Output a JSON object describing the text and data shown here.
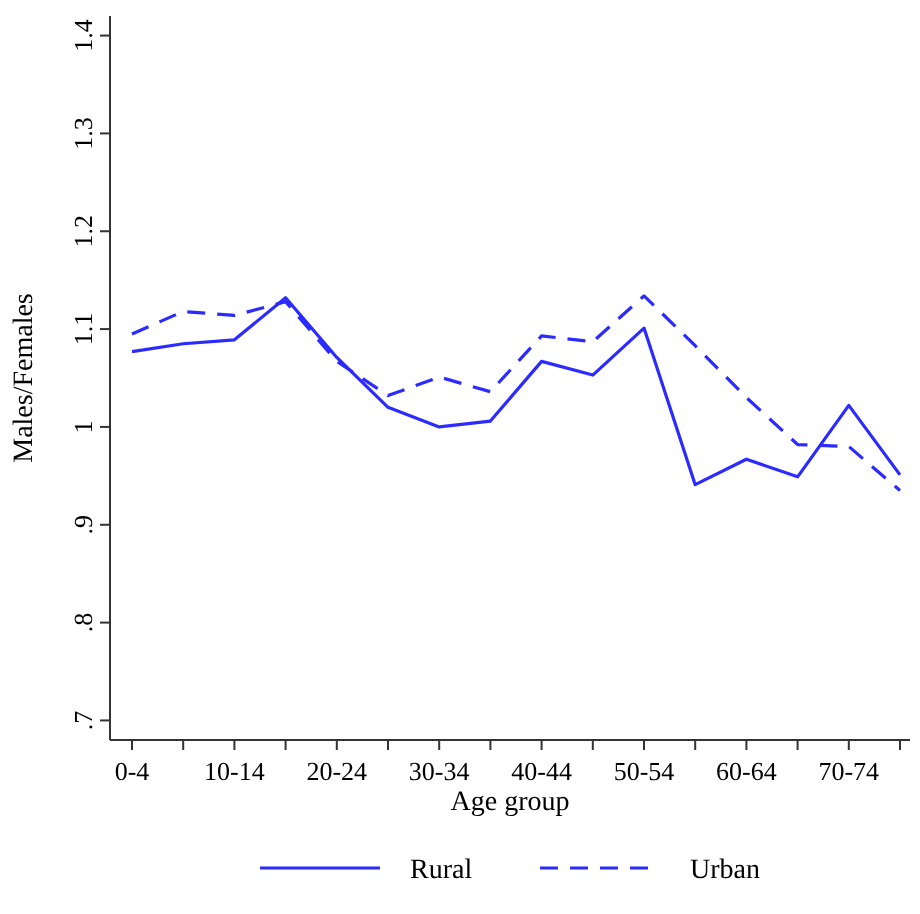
{
  "chart_data": {
    "type": "line",
    "xlabel": "Age group",
    "ylabel": "Males/Females",
    "categories": [
      "0-4",
      null,
      "10-14",
      null,
      "20-24",
      null,
      "30-34",
      null,
      "40-44",
      null,
      "50-54",
      null,
      "60-64",
      null,
      "70-74",
      null
    ],
    "series": [
      {
        "name": "Rural",
        "color": "#2b2bff",
        "line_style": "solid",
        "values": [
          1.077,
          1.085,
          1.089,
          1.132,
          1.071,
          1.02,
          1.0,
          1.006,
          1.067,
          1.053,
          1.101,
          0.941,
          0.967,
          0.949,
          1.022,
          0.951
        ]
      },
      {
        "name": "Urban",
        "color": "#2b2bff",
        "line_style": "dashed",
        "values": [
          1.095,
          1.118,
          1.114,
          1.128,
          1.067,
          1.032,
          1.051,
          1.036,
          1.093,
          1.087,
          1.134,
          1.083,
          1.03,
          0.982,
          0.98,
          0.935
        ]
      }
    ],
    "ylim": [
      0.68,
      1.42
    ],
    "yticks": [
      {
        "value": 0.7,
        "label": ".7"
      },
      {
        "value": 0.8,
        "label": ".8"
      },
      {
        "value": 0.9,
        "label": ".9"
      },
      1,
      1.1,
      1.2,
      1.3,
      1.4
    ],
    "grid": false,
    "legend": "bottom",
    "marker": "none"
  }
}
